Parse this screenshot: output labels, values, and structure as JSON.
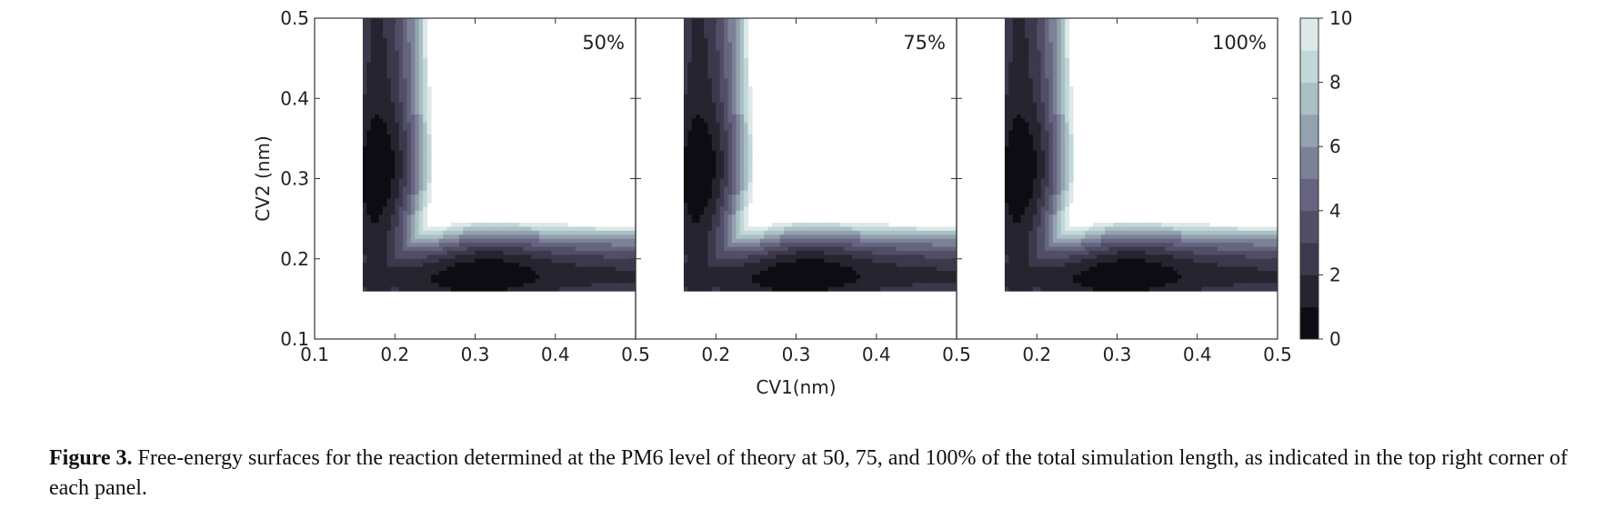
{
  "chart_data": {
    "type": "contour",
    "panels": [
      {
        "label": "50%"
      },
      {
        "label": "75%"
      },
      {
        "label": "100%"
      }
    ],
    "xlabel": "CV1(nm)",
    "ylabel": "CV2 (nm)",
    "xlim": [
      0.1,
      0.5
    ],
    "ylim": [
      0.1,
      0.5
    ],
    "x_ticks": [
      "0.1",
      "0.2",
      "0.3",
      "0.4",
      "0.5"
    ],
    "y_ticks": [
      "0.1",
      "0.2",
      "0.3",
      "0.4",
      "0.5"
    ],
    "colorbar": {
      "range": [
        0,
        10
      ],
      "ticks": [
        "0",
        "2",
        "4",
        "6",
        "8",
        "10"
      ],
      "levels": 10,
      "colormap": [
        "#0c0c12",
        "#25242f",
        "#3b394b",
        "#514e66",
        "#666480",
        "#7c8296",
        "#93a2ae",
        "#a9c0c4",
        "#c1d7d8",
        "#dde9e8"
      ]
    },
    "minima": [
      {
        "cv1": 0.18,
        "cv2": 0.3,
        "free_energy": 0
      },
      {
        "cv1": 0.3,
        "cv2": 0.18,
        "free_energy": 0
      }
    ]
  },
  "caption": {
    "figure_number": "Figure 3.",
    "text": " Free-energy surfaces for the reaction determined at the PM6 level of theory at 50, 75, and 100% of the total simulation length, as indicated in the top right corner of each panel."
  }
}
